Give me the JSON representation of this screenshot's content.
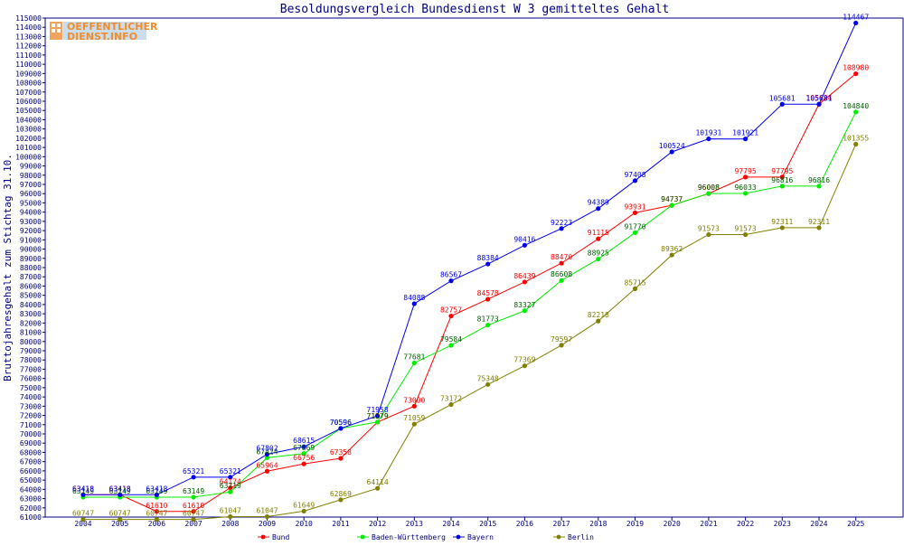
{
  "chart_data": {
    "type": "line",
    "title": "Besoldungsvergleich Bundesdienst W 3 gemitteltes Gehalt",
    "ylabel": "Bruttojahresgehalt zum Stichtag 31.10.",
    "xlabel": "",
    "ylim": [
      61000,
      115000
    ],
    "ytick_step": 1000,
    "grid": false,
    "legend_position": "bottom",
    "logo": "OEFFENTLICHER DIENST.INFO",
    "categories": [
      "2004",
      "2005",
      "2006",
      "2007",
      "2008",
      "2009",
      "2010",
      "2011",
      "2012",
      "2013",
      "2014",
      "2015",
      "2016",
      "2017",
      "2018",
      "2019",
      "2020",
      "2021",
      "2022",
      "2023",
      "2024",
      "2025"
    ],
    "series": [
      {
        "name": "Bund",
        "color": "#ff0000",
        "values": [
          63418,
          63418,
          61610,
          61610,
          64174,
          65964,
          66756,
          67358,
          71279,
          73000,
          82757,
          84578,
          86439,
          88470,
          91115,
          93931,
          94737,
          96008,
          97795,
          97795,
          105684,
          108980
        ]
      },
      {
        "name": "Baden-Württemberg",
        "color": "#00ee00",
        "values": [
          63149,
          63149,
          63149,
          63149,
          63719,
          67424,
          67869,
          70596,
          71279,
          77681,
          79584,
          81773,
          83327,
          86608,
          88925,
          91770,
          94737,
          96008,
          96033,
          96816,
          96816,
          104840
        ]
      },
      {
        "name": "Bayern",
        "color": "#0000ee",
        "values": [
          63418,
          63418,
          63418,
          65321,
          65321,
          67802,
          68615,
          70596,
          71958,
          84088,
          86567,
          88384,
          90416,
          92223,
          94389,
          97408,
          100524,
          101931,
          101921,
          105681,
          105681,
          114467
        ]
      },
      {
        "name": "Berlin",
        "color": "#808000",
        "values": [
          60747,
          60747,
          60747,
          60747,
          61047,
          61047,
          61649,
          62869,
          64114,
          71059,
          73172,
          75348,
          77369,
          79597,
          82218,
          85715,
          89362,
          91573,
          91573,
          92311,
          92311,
          101355
        ]
      }
    ]
  }
}
